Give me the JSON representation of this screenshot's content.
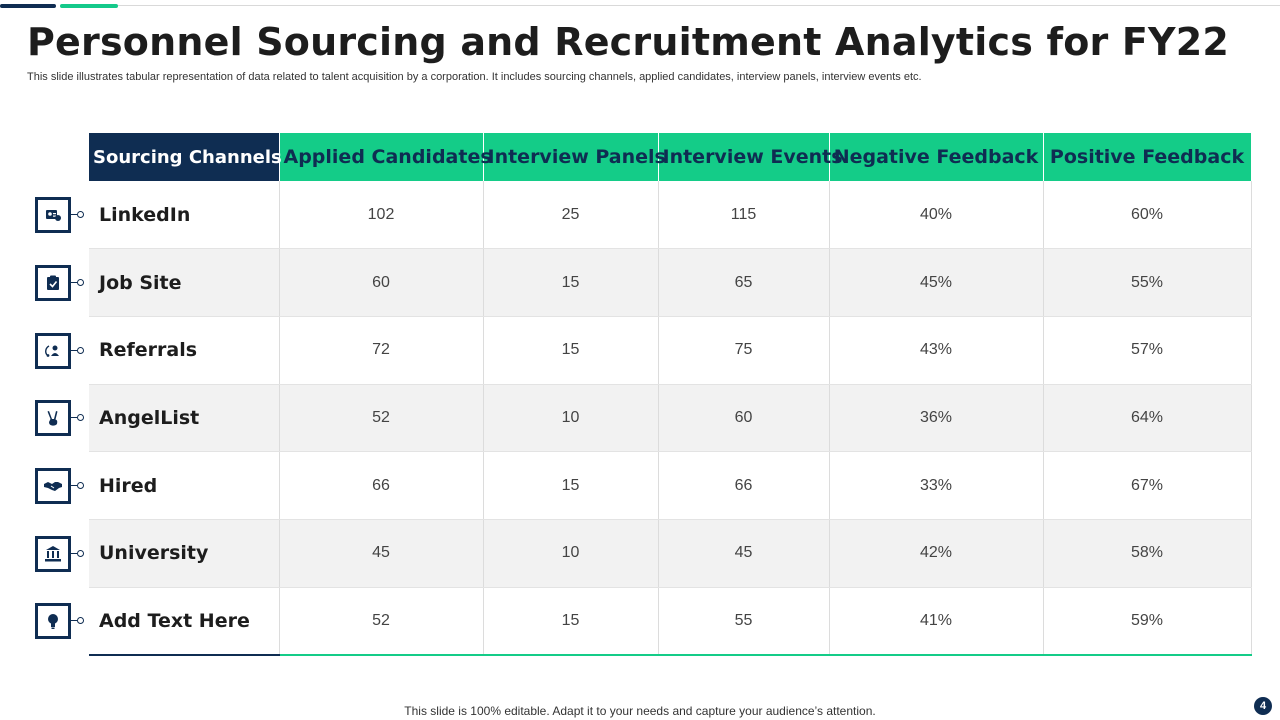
{
  "title": "Personnel Sourcing and Recruitment Analytics for FY22",
  "subtitle": "This slide illustrates tabular representation of data related to talent acquisition by a corporation. It includes sourcing channels, applied candidates, interview panels, interview events etc.",
  "table": {
    "headers": [
      "Sourcing Channels",
      "Applied Candidates",
      "Interview Panels",
      "Interview Events",
      "Negative Feedback",
      "Positive Feedback"
    ],
    "rows": [
      {
        "channel": "LinkedIn",
        "icon": "id-card-icon",
        "applied": "102",
        "panels": "25",
        "events": "115",
        "negative": "40%",
        "positive": "60%"
      },
      {
        "channel": "Job Site",
        "icon": "checklist-icon",
        "applied": "60",
        "panels": "15",
        "events": "65",
        "negative": "45%",
        "positive": "55%"
      },
      {
        "channel": "Referrals",
        "icon": "referral-icon",
        "applied": "72",
        "panels": "15",
        "events": "75",
        "negative": "43%",
        "positive": "57%"
      },
      {
        "channel": "AngelList",
        "icon": "victory-hand-icon",
        "applied": "52",
        "panels": "10",
        "events": "60",
        "negative": "36%",
        "positive": "64%"
      },
      {
        "channel": "Hired",
        "icon": "handshake-icon",
        "applied": "66",
        "panels": "15",
        "events": "66",
        "negative": "33%",
        "positive": "67%"
      },
      {
        "channel": "University",
        "icon": "university-icon",
        "applied": "45",
        "panels": "10",
        "events": "45",
        "negative": "42%",
        "positive": "58%"
      },
      {
        "channel": "Add Text Here",
        "icon": "lightbulb-icon",
        "applied": "52",
        "panels": "15",
        "events": "55",
        "negative": "41%",
        "positive": "59%"
      }
    ]
  },
  "footer": "This slide is 100% editable. Adapt it to your needs and capture your audience’s attention.",
  "page_number": "4",
  "colors": {
    "navy": "#0f2d52",
    "green": "#14cc88"
  }
}
